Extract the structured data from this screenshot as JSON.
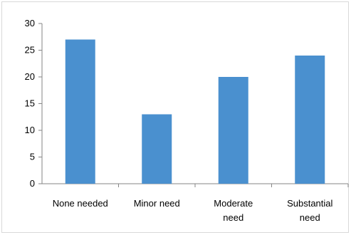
{
  "chart_data": {
    "type": "bar",
    "categories": [
      [
        "None needed"
      ],
      [
        "Minor need"
      ],
      [
        "Moderate",
        "need"
      ],
      [
        "Substantial",
        "need"
      ]
    ],
    "values": [
      27,
      13,
      20,
      24
    ],
    "ylim": [
      0,
      30
    ],
    "yticks": [
      "0",
      "5",
      "10",
      "15",
      "20",
      "25",
      "30"
    ],
    "grid": false,
    "bar_color": "#4a90cf",
    "axis_color": "#868686"
  }
}
